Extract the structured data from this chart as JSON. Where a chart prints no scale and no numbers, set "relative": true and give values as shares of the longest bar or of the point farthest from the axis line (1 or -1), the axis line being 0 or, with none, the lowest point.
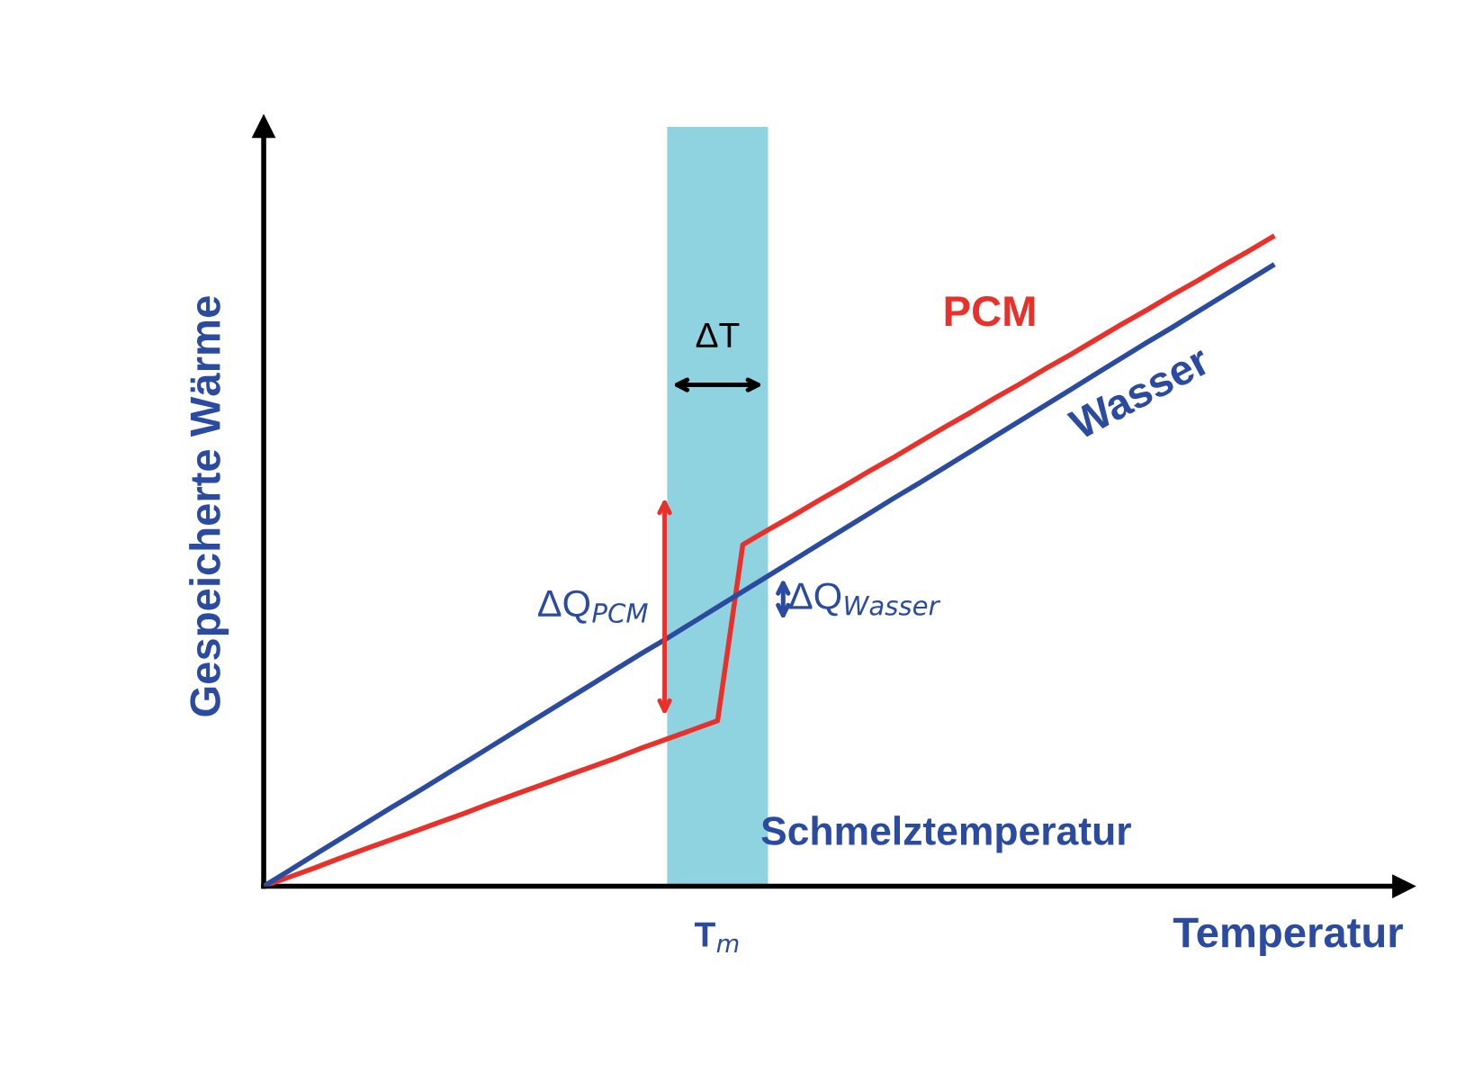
{
  "chart_data": {
    "type": "line",
    "relative": true,
    "xlabel": "Temperatur",
    "ylabel": "Gespeicherte Wärme",
    "categories": [
      null,
      null,
      null,
      null,
      null,
      null,
      null,
      null,
      null,
      null,
      null,
      null,
      null,
      null,
      null,
      null,
      null,
      null,
      null,
      null,
      null,
      null,
      null,
      null,
      null,
      null,
      null,
      null,
      null,
      null,
      null,
      null,
      null,
      null,
      null,
      null,
      null,
      null,
      null,
      null,
      null
    ],
    "series": [
      {
        "name": "PCM",
        "color": "#e8312a",
        "values": [
          0,
          0.014,
          0.028,
          0.043,
          0.057,
          0.071,
          0.085,
          0.099,
          0.113,
          0.128,
          0.142,
          0.156,
          0.17,
          0.184,
          0.198,
          0.213,
          0.227,
          0.241,
          0.255,
          0.526,
          0.549,
          0.571,
          0.594,
          0.616,
          0.639,
          0.661,
          0.684,
          0.707,
          0.729,
          0.752,
          0.774,
          0.797,
          0.819,
          0.842,
          0.865,
          0.887,
          0.91,
          0.932,
          0.955,
          0.977,
          1
        ]
      },
      {
        "name": "Wasser",
        "color": "#2b4ba0",
        "values": [
          0,
          0.024,
          0.048,
          0.072,
          0.096,
          0.12,
          0.143,
          0.167,
          0.191,
          0.215,
          0.239,
          0.263,
          0.287,
          0.311,
          0.335,
          0.359,
          0.382,
          0.406,
          0.43,
          0.454,
          0.478,
          0.502,
          0.526,
          0.55,
          0.574,
          0.598,
          0.621,
          0.645,
          0.669,
          0.693,
          0.717,
          0.741,
          0.765,
          0.789,
          0.813,
          0.837,
          0.86,
          0.884,
          0.908,
          0.932,
          0.956
        ]
      }
    ],
    "annotations": [
      "ΔT",
      "ΔQ$_{PCM}$",
      "ΔQ$_{Wasser}$",
      "T$_{m}$",
      "Schmelztemperatur"
    ],
    "marker": "none",
    "line_style": "solid"
  }
}
